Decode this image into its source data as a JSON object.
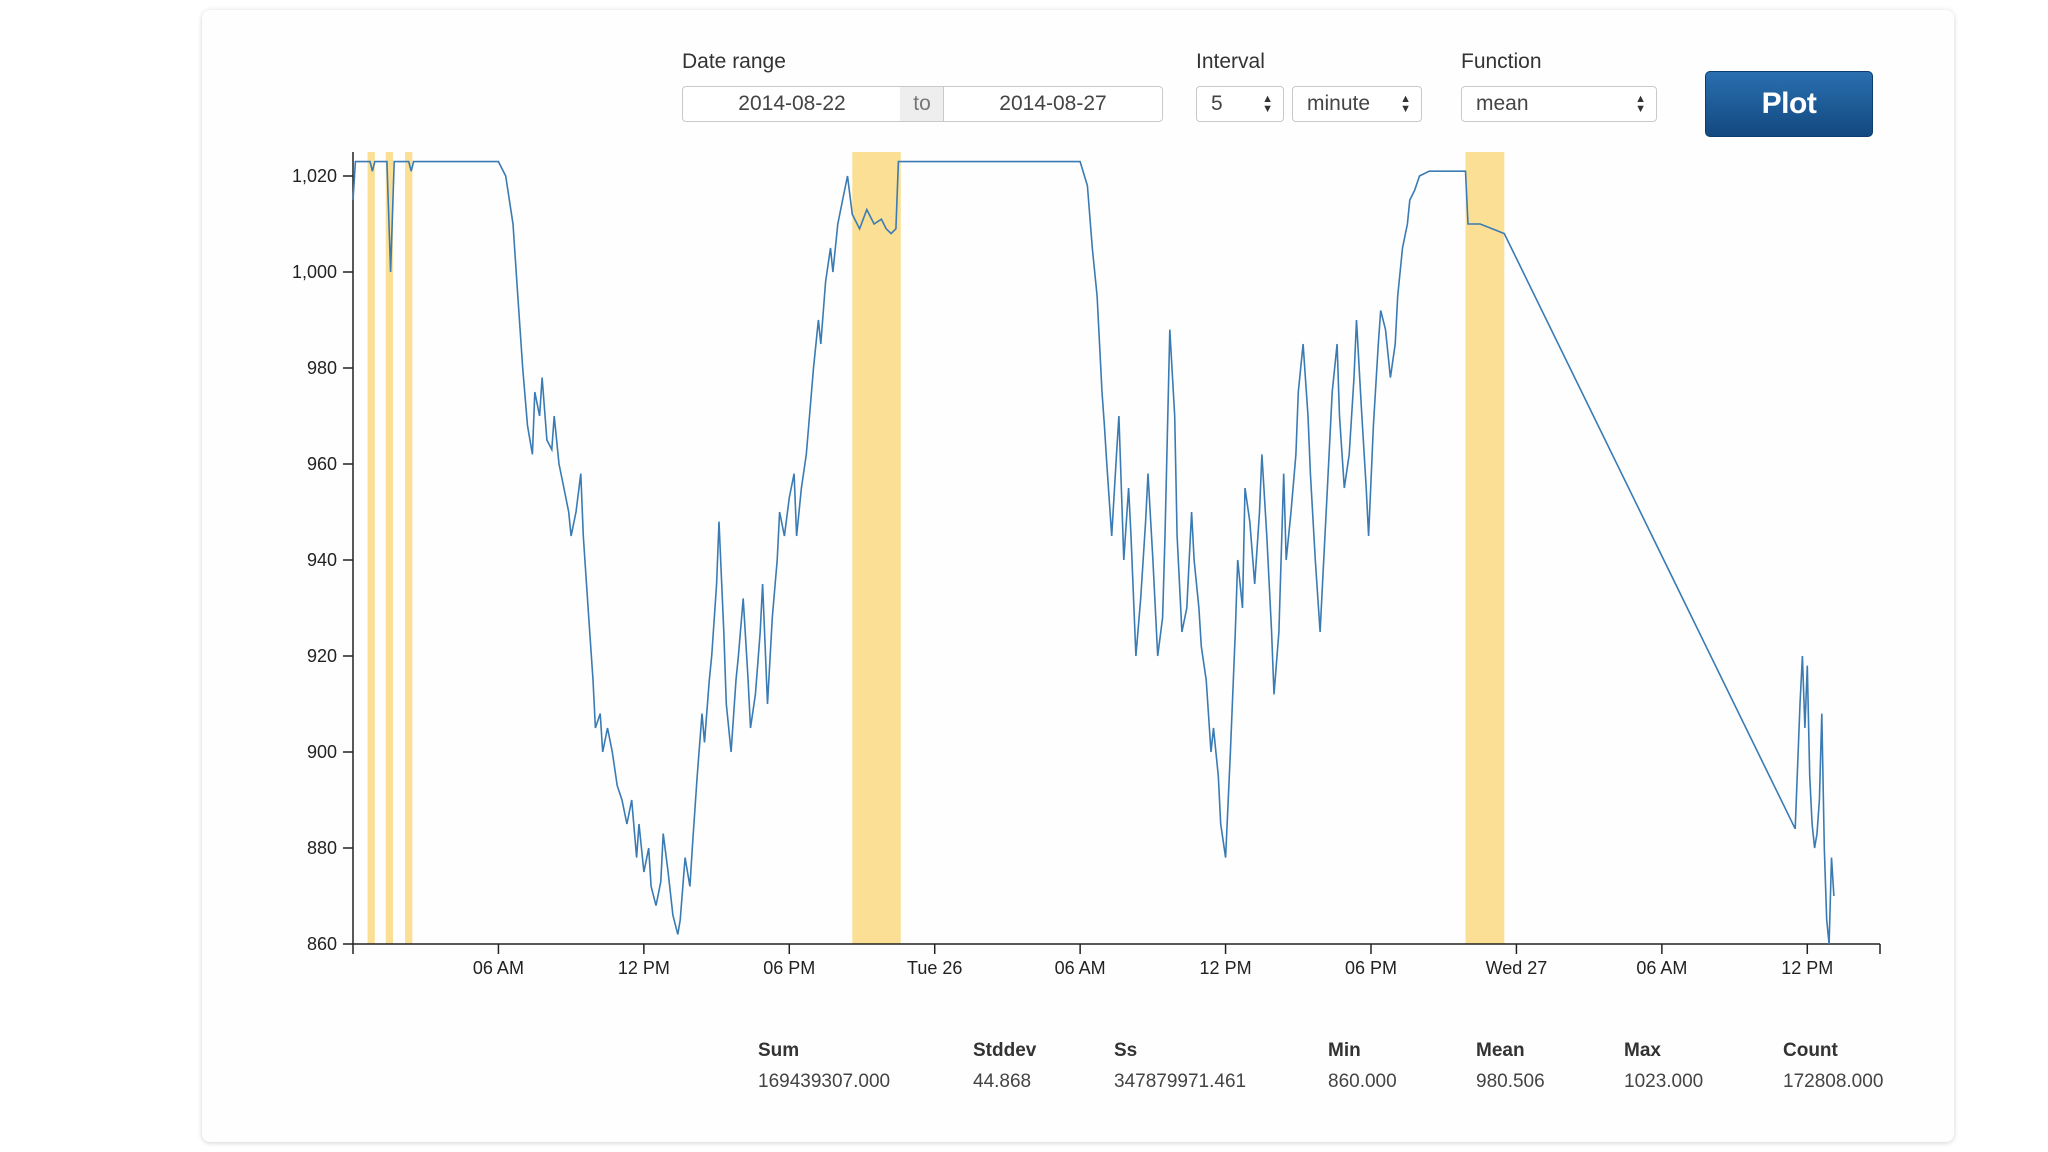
{
  "controls": {
    "date_range_label": "Date range",
    "date_from": "2014-08-22",
    "to_label": "to",
    "date_to": "2014-08-27",
    "interval_label": "Interval",
    "interval_value": "5",
    "interval_unit": "minute",
    "function_label": "Function",
    "function_value": "mean",
    "plot_label": "Plot"
  },
  "chart_data": {
    "type": "line",
    "y_ticks": [
      "1,020",
      "1,000",
      "980",
      "960",
      "940",
      "920",
      "900",
      "880",
      "860"
    ],
    "x_ticks": [
      "06 AM",
      "12 PM",
      "06 PM",
      "Tue 26",
      "06 AM",
      "12 PM",
      "06 PM",
      "Wed 27",
      "06 AM",
      "12 PM"
    ],
    "ylim": [
      860,
      1025
    ],
    "xlim": [
      0,
      63
    ],
    "series_color": "#3a7bb3",
    "highlight_color": "#f9dc8a",
    "highlights": [
      [
        0.6,
        0.9
      ],
      [
        1.35,
        1.65
      ],
      [
        2.15,
        2.45
      ],
      [
        20.6,
        22.6
      ],
      [
        45.9,
        47.5
      ]
    ],
    "x_tick_values": [
      6,
      12,
      18,
      24,
      30,
      36,
      42,
      48,
      54,
      60
    ],
    "points": [
      [
        0,
        1015
      ],
      [
        0.1,
        1023
      ],
      [
        0.7,
        1023
      ],
      [
        0.8,
        1021
      ],
      [
        0.9,
        1023
      ],
      [
        1.4,
        1023
      ],
      [
        1.55,
        1000
      ],
      [
        1.7,
        1023
      ],
      [
        2.3,
        1023
      ],
      [
        2.4,
        1021
      ],
      [
        2.5,
        1023
      ],
      [
        5.0,
        1023
      ],
      [
        6.0,
        1023
      ],
      [
        6.3,
        1020
      ],
      [
        6.6,
        1010
      ],
      [
        6.8,
        995
      ],
      [
        7.0,
        980
      ],
      [
        7.2,
        968
      ],
      [
        7.4,
        962
      ],
      [
        7.5,
        975
      ],
      [
        7.7,
        970
      ],
      [
        7.8,
        978
      ],
      [
        8.0,
        965
      ],
      [
        8.2,
        963
      ],
      [
        8.3,
        970
      ],
      [
        8.5,
        960
      ],
      [
        8.7,
        955
      ],
      [
        8.9,
        950
      ],
      [
        9.0,
        945
      ],
      [
        9.2,
        950
      ],
      [
        9.4,
        958
      ],
      [
        9.5,
        945
      ],
      [
        9.7,
        930
      ],
      [
        9.9,
        915
      ],
      [
        10.0,
        905
      ],
      [
        10.2,
        908
      ],
      [
        10.3,
        900
      ],
      [
        10.5,
        905
      ],
      [
        10.7,
        900
      ],
      [
        10.9,
        893
      ],
      [
        11.1,
        890
      ],
      [
        11.3,
        885
      ],
      [
        11.5,
        890
      ],
      [
        11.7,
        878
      ],
      [
        11.8,
        885
      ],
      [
        12.0,
        875
      ],
      [
        12.2,
        880
      ],
      [
        12.3,
        872
      ],
      [
        12.5,
        868
      ],
      [
        12.7,
        873
      ],
      [
        12.8,
        883
      ],
      [
        13.0,
        875
      ],
      [
        13.2,
        866
      ],
      [
        13.4,
        862
      ],
      [
        13.5,
        865
      ],
      [
        13.7,
        878
      ],
      [
        13.9,
        872
      ],
      [
        14.0,
        880
      ],
      [
        14.2,
        895
      ],
      [
        14.4,
        908
      ],
      [
        14.5,
        902
      ],
      [
        14.7,
        915
      ],
      [
        14.8,
        920
      ],
      [
        15.0,
        935
      ],
      [
        15.1,
        948
      ],
      [
        15.3,
        925
      ],
      [
        15.4,
        910
      ],
      [
        15.6,
        900
      ],
      [
        15.8,
        915
      ],
      [
        15.9,
        920
      ],
      [
        16.1,
        932
      ],
      [
        16.3,
        915
      ],
      [
        16.4,
        905
      ],
      [
        16.6,
        912
      ],
      [
        16.8,
        925
      ],
      [
        16.9,
        935
      ],
      [
        17.1,
        910
      ],
      [
        17.3,
        928
      ],
      [
        17.5,
        940
      ],
      [
        17.6,
        950
      ],
      [
        17.8,
        945
      ],
      [
        18.0,
        953
      ],
      [
        18.2,
        958
      ],
      [
        18.3,
        945
      ],
      [
        18.5,
        955
      ],
      [
        18.7,
        962
      ],
      [
        18.8,
        968
      ],
      [
        19.0,
        980
      ],
      [
        19.2,
        990
      ],
      [
        19.3,
        985
      ],
      [
        19.5,
        998
      ],
      [
        19.7,
        1005
      ],
      [
        19.8,
        1000
      ],
      [
        20.0,
        1010
      ],
      [
        20.2,
        1015
      ],
      [
        20.4,
        1020
      ],
      [
        20.6,
        1012
      ],
      [
        20.9,
        1009
      ],
      [
        21.2,
        1013
      ],
      [
        21.5,
        1010
      ],
      [
        21.8,
        1011
      ],
      [
        22.0,
        1009
      ],
      [
        22.2,
        1008
      ],
      [
        22.4,
        1009
      ],
      [
        22.5,
        1023
      ],
      [
        23.0,
        1023
      ],
      [
        29.0,
        1023
      ],
      [
        30.0,
        1023
      ],
      [
        30.3,
        1018
      ],
      [
        30.5,
        1005
      ],
      [
        30.7,
        995
      ],
      [
        30.9,
        975
      ],
      [
        31.0,
        968
      ],
      [
        31.1,
        960
      ],
      [
        31.3,
        945
      ],
      [
        31.5,
        962
      ],
      [
        31.6,
        970
      ],
      [
        31.8,
        940
      ],
      [
        32.0,
        955
      ],
      [
        32.1,
        945
      ],
      [
        32.3,
        920
      ],
      [
        32.5,
        932
      ],
      [
        32.7,
        948
      ],
      [
        32.8,
        958
      ],
      [
        33.0,
        940
      ],
      [
        33.2,
        920
      ],
      [
        33.4,
        928
      ],
      [
        33.5,
        945
      ],
      [
        33.7,
        988
      ],
      [
        33.9,
        970
      ],
      [
        34.0,
        945
      ],
      [
        34.2,
        925
      ],
      [
        34.4,
        930
      ],
      [
        34.6,
        950
      ],
      [
        34.7,
        940
      ],
      [
        34.9,
        930
      ],
      [
        35.0,
        922
      ],
      [
        35.2,
        915
      ],
      [
        35.4,
        900
      ],
      [
        35.5,
        905
      ],
      [
        35.7,
        895
      ],
      [
        35.8,
        885
      ],
      [
        36.0,
        878
      ],
      [
        36.2,
        900
      ],
      [
        36.4,
        925
      ],
      [
        36.5,
        940
      ],
      [
        36.7,
        930
      ],
      [
        36.8,
        955
      ],
      [
        37.0,
        948
      ],
      [
        37.2,
        935
      ],
      [
        37.4,
        950
      ],
      [
        37.5,
        962
      ],
      [
        37.7,
        945
      ],
      [
        37.9,
        925
      ],
      [
        38.0,
        912
      ],
      [
        38.2,
        925
      ],
      [
        38.4,
        958
      ],
      [
        38.5,
        940
      ],
      [
        38.7,
        950
      ],
      [
        38.9,
        962
      ],
      [
        39.0,
        975
      ],
      [
        39.2,
        985
      ],
      [
        39.4,
        970
      ],
      [
        39.5,
        958
      ],
      [
        39.7,
        940
      ],
      [
        39.9,
        925
      ],
      [
        40.0,
        935
      ],
      [
        40.2,
        955
      ],
      [
        40.4,
        975
      ],
      [
        40.6,
        985
      ],
      [
        40.7,
        970
      ],
      [
        40.9,
        955
      ],
      [
        41.1,
        962
      ],
      [
        41.3,
        978
      ],
      [
        41.4,
        990
      ],
      [
        41.6,
        972
      ],
      [
        41.8,
        955
      ],
      [
        41.9,
        945
      ],
      [
        42.1,
        968
      ],
      [
        42.3,
        985
      ],
      [
        42.4,
        992
      ],
      [
        42.6,
        988
      ],
      [
        42.8,
        978
      ],
      [
        43.0,
        985
      ],
      [
        43.1,
        995
      ],
      [
        43.3,
        1005
      ],
      [
        43.5,
        1010
      ],
      [
        43.6,
        1015
      ],
      [
        43.8,
        1017
      ],
      [
        44.0,
        1020
      ],
      [
        44.4,
        1021
      ],
      [
        45.0,
        1021
      ],
      [
        45.9,
        1021
      ],
      [
        46.0,
        1010
      ],
      [
        46.5,
        1010
      ],
      [
        47.0,
        1009
      ],
      [
        47.5,
        1008
      ],
      [
        59.5,
        884
      ],
      [
        59.7,
        910
      ],
      [
        59.8,
        920
      ],
      [
        59.9,
        905
      ],
      [
        60.0,
        918
      ],
      [
        60.1,
        895
      ],
      [
        60.2,
        885
      ],
      [
        60.3,
        880
      ],
      [
        60.4,
        883
      ],
      [
        60.5,
        890
      ],
      [
        60.6,
        908
      ],
      [
        60.7,
        880
      ],
      [
        60.8,
        865
      ],
      [
        60.9,
        860
      ],
      [
        61.0,
        878
      ],
      [
        61.1,
        870
      ]
    ]
  },
  "stats": [
    {
      "name": "Sum",
      "value": "169439307.000"
    },
    {
      "name": "Stddev",
      "value": "44.868"
    },
    {
      "name": "Ss",
      "value": "347879971.461"
    },
    {
      "name": "Min",
      "value": "860.000"
    },
    {
      "name": "Mean",
      "value": "980.506"
    },
    {
      "name": "Max",
      "value": "1023.000"
    },
    {
      "name": "Count",
      "value": "172808.000"
    }
  ]
}
